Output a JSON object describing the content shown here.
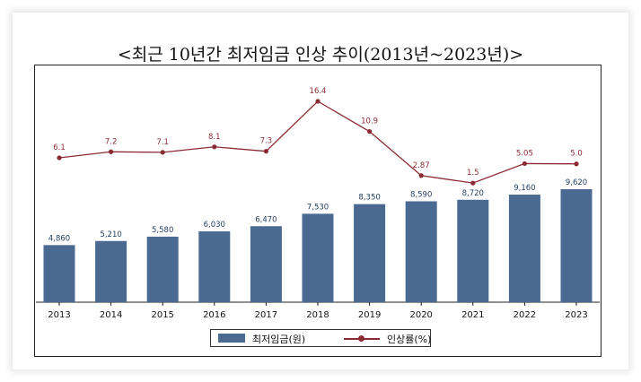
{
  "title": "<최근 10년간 최저임금 인상 추이(2013년~2023년)>",
  "chart_data": {
    "type": "bar",
    "categories": [
      "2013",
      "2014",
      "2015",
      "2016",
      "2017",
      "2018",
      "2019",
      "2020",
      "2021",
      "2022",
      "2023"
    ],
    "series": [
      {
        "name": "최저임금(원)",
        "type": "bar",
        "values": [
          4860,
          5210,
          5580,
          6030,
          6470,
          7530,
          8350,
          8590,
          8720,
          9160,
          9620
        ],
        "labels": [
          "4,860",
          "5,210",
          "5,580",
          "6,030",
          "6,470",
          "7,530",
          "8,350",
          "8,590",
          "8,720",
          "9,160",
          "9,620"
        ],
        "color": "#4a6a92"
      },
      {
        "name": "인상률(%)",
        "type": "line",
        "values": [
          6.1,
          7.2,
          7.1,
          8.1,
          7.3,
          16.4,
          10.9,
          2.87,
          1.5,
          5.05,
          5.0
        ],
        "labels": [
          "6.1",
          "7.2",
          "7.1",
          "8.1",
          "7.3",
          "16.4",
          "10.9",
          "2.87",
          "1.5",
          "5.05",
          "5.0"
        ],
        "color": "#8a2b34"
      }
    ],
    "legend": "bottom",
    "grid": false
  }
}
